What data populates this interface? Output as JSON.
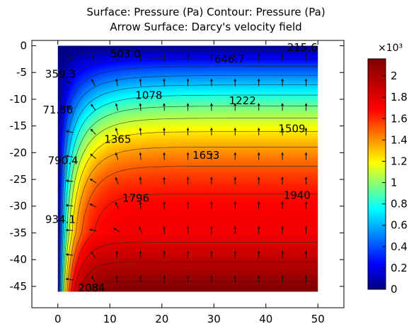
{
  "chart_data": {
    "type": "heatmap",
    "title_line1": "Surface: Pressure (Pa)  Contour: Pressure (Pa)",
    "title_line2": "Arrow Surface: Darcy's velocity field",
    "x_ticks": [
      "0",
      "10",
      "20",
      "30",
      "40",
      "50"
    ],
    "x_tick_values": [
      0,
      10,
      20,
      30,
      40,
      50
    ],
    "y_ticks": [
      "0",
      "-5",
      "-10",
      "-15",
      "-20",
      "-25",
      "-30",
      "-35",
      "-40",
      "-45"
    ],
    "y_tick_values": [
      0,
      -5,
      -10,
      -15,
      -20,
      -25,
      -30,
      -35,
      -40,
      -45
    ],
    "xlim": [
      -5,
      55
    ],
    "ylim": [
      -49,
      1
    ],
    "domain_x": [
      0,
      50
    ],
    "domain_y": [
      -46,
      0
    ],
    "colorbar": {
      "exponent_label": "×10³",
      "ticks": [
        "0",
        "0.2",
        "0.4",
        "0.6",
        "0.8",
        "1",
        "1.2",
        "1.4",
        "1.6",
        "1.8",
        "2"
      ],
      "tick_values": [
        0,
        0.2,
        0.4,
        0.6,
        0.8,
        1,
        1.2,
        1.4,
        1.6,
        1.8,
        2
      ],
      "range": [
        0,
        2.16
      ],
      "colormap": "rainbow"
    },
    "contour_labels": [
      {
        "text": "503.0",
        "x": 13,
        "y": -1.5
      },
      {
        "text": "215.6",
        "x": 47,
        "y": -0.3
      },
      {
        "text": "646.7",
        "x": 33,
        "y": -2.5
      },
      {
        "text": "359.3",
        "x": 0.5,
        "y": -5.3
      },
      {
        "text": "1078",
        "x": 17.5,
        "y": -9.3
      },
      {
        "text": "1222",
        "x": 35.5,
        "y": -10.3
      },
      {
        "text": "71.86",
        "x": 0,
        "y": -12
      },
      {
        "text": "1509",
        "x": 45,
        "y": -15.5
      },
      {
        "text": "1365",
        "x": 11.5,
        "y": -17.5
      },
      {
        "text": "790.4",
        "x": 1,
        "y": -21.5
      },
      {
        "text": "1653",
        "x": 28.5,
        "y": -20.5
      },
      {
        "text": "1796",
        "x": 15,
        "y": -28.5
      },
      {
        "text": "1940",
        "x": 46,
        "y": -28
      },
      {
        "text": "934.1",
        "x": 0.5,
        "y": -32.5
      },
      {
        "text": "2084",
        "x": 6.5,
        "y": -45.3
      }
    ],
    "contour_levels": [
      71.86,
      215.6,
      359.3,
      503.0,
      646.7,
      790.4,
      934.1,
      1078,
      1222,
      1365,
      1509,
      1653,
      1796,
      1940,
      2084
    ],
    "pressure_range": [
      0,
      2160
    ],
    "arrow_grid": {
      "nx": 11,
      "ny": 10
    }
  }
}
